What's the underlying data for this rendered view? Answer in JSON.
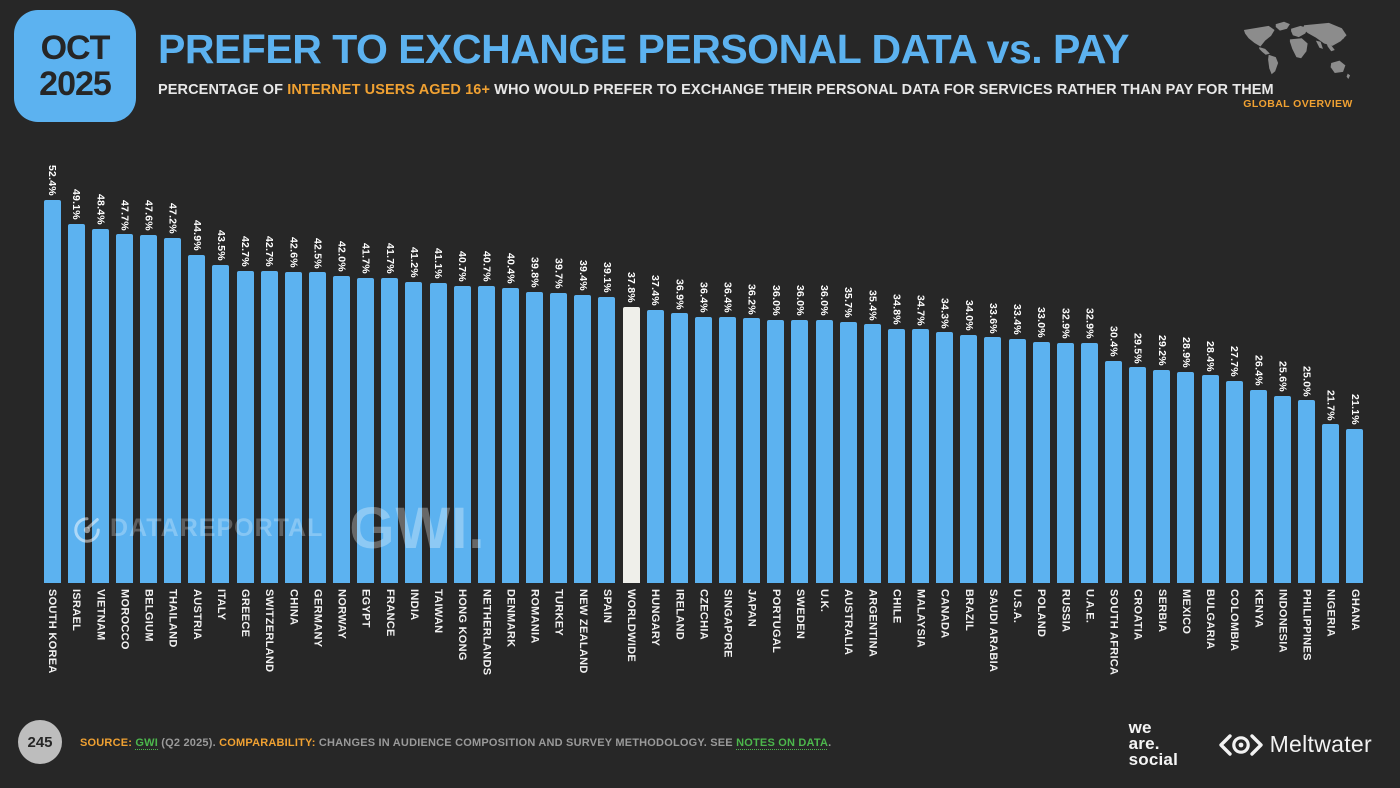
{
  "header": {
    "date_line1": "OCT",
    "date_line2": "2025",
    "title": "PREFER TO EXCHANGE PERSONAL DATA vs. PAY",
    "subtitle_pre": "PERCENTAGE OF ",
    "subtitle_highlight": "INTERNET USERS AGED 16+",
    "subtitle_post": " WHO WOULD PREFER TO EXCHANGE THEIR PERSONAL DATA FOR SERVICES RATHER THAN PAY FOR THEM",
    "region_label": "GLOBAL OVERVIEW"
  },
  "watermarks": {
    "datareportal": "DATAREPORTAL",
    "gwi": "GWI."
  },
  "footer": {
    "page_number": "245",
    "source_label": "SOURCE:",
    "source_link": "GWI",
    "source_note": " (Q2 2025). ",
    "comparability_label": "COMPARABILITY:",
    "comparability_text": " CHANGES IN AUDIENCE COMPOSITION AND SURVEY METHODOLOGY. SEE ",
    "notes_link": "NOTES ON DATA",
    "notes_period": ".",
    "was_line1": "we",
    "was_line2": "are.",
    "was_line3": "social",
    "meltwater_label": "Meltwater"
  },
  "colors": {
    "accent_blue": "#5cb2f0",
    "highlight_white": "#efefea",
    "orange": "#f0a132",
    "green": "#4cb74c",
    "background": "#272727",
    "map_gray": "#8c8c8c"
  },
  "chart_data": {
    "type": "bar",
    "title": "PREFER TO EXCHANGE PERSONAL DATA vs. PAY",
    "subtitle": "PERCENTAGE OF INTERNET USERS AGED 16+ WHO WOULD PREFER TO EXCHANGE THEIR PERSONAL DATA FOR SERVICES RATHER THAN PAY FOR THEM",
    "value_suffix": "%",
    "ylim": [
      0,
      52.4
    ],
    "grid": false,
    "legend": "none",
    "bar_color": "#5cb2f0",
    "highlight_category": "WORLDWIDE",
    "highlight_bar_color": "#efefea",
    "categories": [
      "SOUTH KOREA",
      "ISRAEL",
      "VIETNAM",
      "MOROCCO",
      "BELGIUM",
      "THAILAND",
      "AUSTRIA",
      "ITALY",
      "GREECE",
      "SWITZERLAND",
      "CHINA",
      "GERMANY",
      "NORWAY",
      "EGYPT",
      "FRANCE",
      "INDIA",
      "TAIWAN",
      "HONG KONG",
      "NETHERLANDS",
      "DENMARK",
      "ROMANIA",
      "TURKEY",
      "NEW ZEALAND",
      "SPAIN",
      "WORLDWIDE",
      "HUNGARY",
      "IRELAND",
      "CZECHIA",
      "SINGAPORE",
      "JAPAN",
      "PORTUGAL",
      "SWEDEN",
      "U.K.",
      "AUSTRALIA",
      "ARGENTINA",
      "CHILE",
      "MALAYSIA",
      "CANADA",
      "BRAZIL",
      "SAUDI ARABIA",
      "U.S.A.",
      "POLAND",
      "RUSSIA",
      "U.A.E.",
      "SOUTH AFRICA",
      "CROATIA",
      "SERBIA",
      "MEXICO",
      "BULGARIA",
      "COLOMBIA",
      "KENYA",
      "INDONESIA",
      "PHILIPPINES",
      "NIGERIA",
      "GHANA"
    ],
    "values": [
      52.4,
      49.1,
      48.4,
      47.7,
      47.6,
      47.2,
      44.9,
      43.5,
      42.7,
      42.7,
      42.6,
      42.5,
      42.0,
      41.7,
      41.7,
      41.2,
      41.1,
      40.7,
      40.7,
      40.4,
      39.8,
      39.7,
      39.4,
      39.1,
      37.8,
      37.4,
      36.9,
      36.4,
      36.4,
      36.2,
      36.0,
      36.0,
      36.0,
      35.7,
      35.4,
      34.8,
      34.7,
      34.3,
      34.0,
      33.6,
      33.4,
      33.0,
      32.9,
      32.9,
      30.4,
      29.5,
      29.2,
      28.9,
      28.4,
      27.7,
      26.4,
      25.6,
      25.0,
      21.7,
      21.1
    ]
  }
}
